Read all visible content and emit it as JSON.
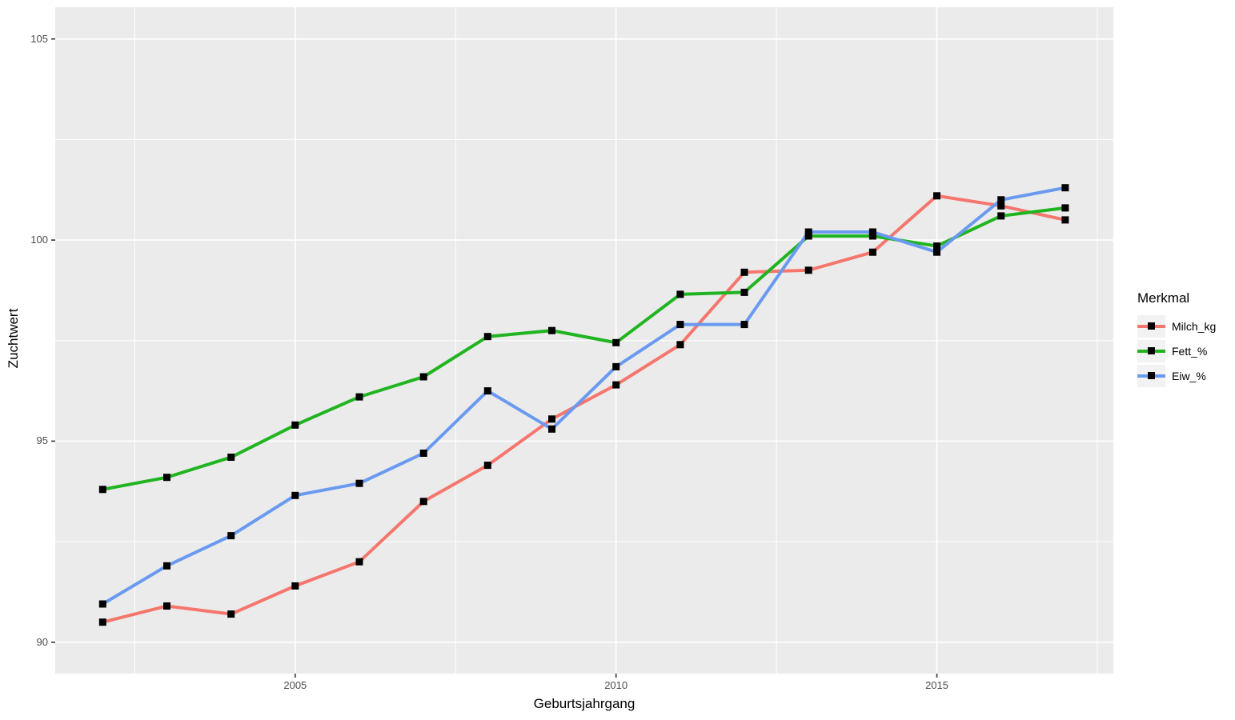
{
  "chart_data": {
    "type": "line",
    "title": "",
    "xlabel": "Geburtsjahrgang",
    "ylabel": "Zuchtwert",
    "legend_title": "Merkmal",
    "legend_position": "right",
    "x": [
      2002,
      2003,
      2004,
      2005,
      2006,
      2007,
      2008,
      2009,
      2010,
      2011,
      2012,
      2013,
      2014,
      2015,
      2016,
      2017
    ],
    "series": [
      {
        "name": "Milch_kg",
        "color": "#F5766D",
        "values": [
          90.5,
          90.9,
          90.7,
          91.4,
          92.0,
          93.5,
          94.4,
          95.55,
          96.4,
          97.4,
          99.2,
          99.25,
          99.7,
          101.1,
          100.85,
          100.5
        ]
      },
      {
        "name": "Fett_%",
        "color": "#21B421",
        "values": [
          93.8,
          94.1,
          94.6,
          95.4,
          96.1,
          96.6,
          97.6,
          97.75,
          97.45,
          98.65,
          98.7,
          100.1,
          100.1,
          99.85,
          100.6,
          100.8
        ]
      },
      {
        "name": "Eiw_%",
        "color": "#6A9AF0",
        "values": [
          90.95,
          91.9,
          92.65,
          93.65,
          93.95,
          94.7,
          96.25,
          95.3,
          96.85,
          97.9,
          97.9,
          100.2,
          100.2,
          99.7,
          101.0,
          101.3
        ]
      }
    ],
    "x_major_ticks": [
      2005,
      2010,
      2015
    ],
    "x_tick_labels": [
      "2005",
      "2010",
      "2015"
    ],
    "x_minor_ticks": [
      2002.5,
      2007.5,
      2012.5,
      2017.5
    ],
    "y_major_ticks": [
      90,
      95,
      100,
      105
    ],
    "y_tick_labels": [
      "90",
      "95",
      "100",
      "105"
    ],
    "y_minor_ticks": [
      92.5,
      97.5,
      102.5
    ],
    "xlim": [
      2001.26,
      2017.75
    ],
    "ylim": [
      89.22,
      105.79
    ],
    "grid": true,
    "marker": {
      "shape": "square",
      "color": "#000000",
      "size": 9
    },
    "style": {
      "background": "#FFFFFF",
      "panel_bg": "#EBEBEB",
      "grid_color": "#FFFFFF",
      "tick_color": "#333333",
      "tick_label_color": "#4D4D4D",
      "axis_title_color": "#000000",
      "legend_key_bg": "#F2F2F2",
      "line_width": 4
    }
  }
}
